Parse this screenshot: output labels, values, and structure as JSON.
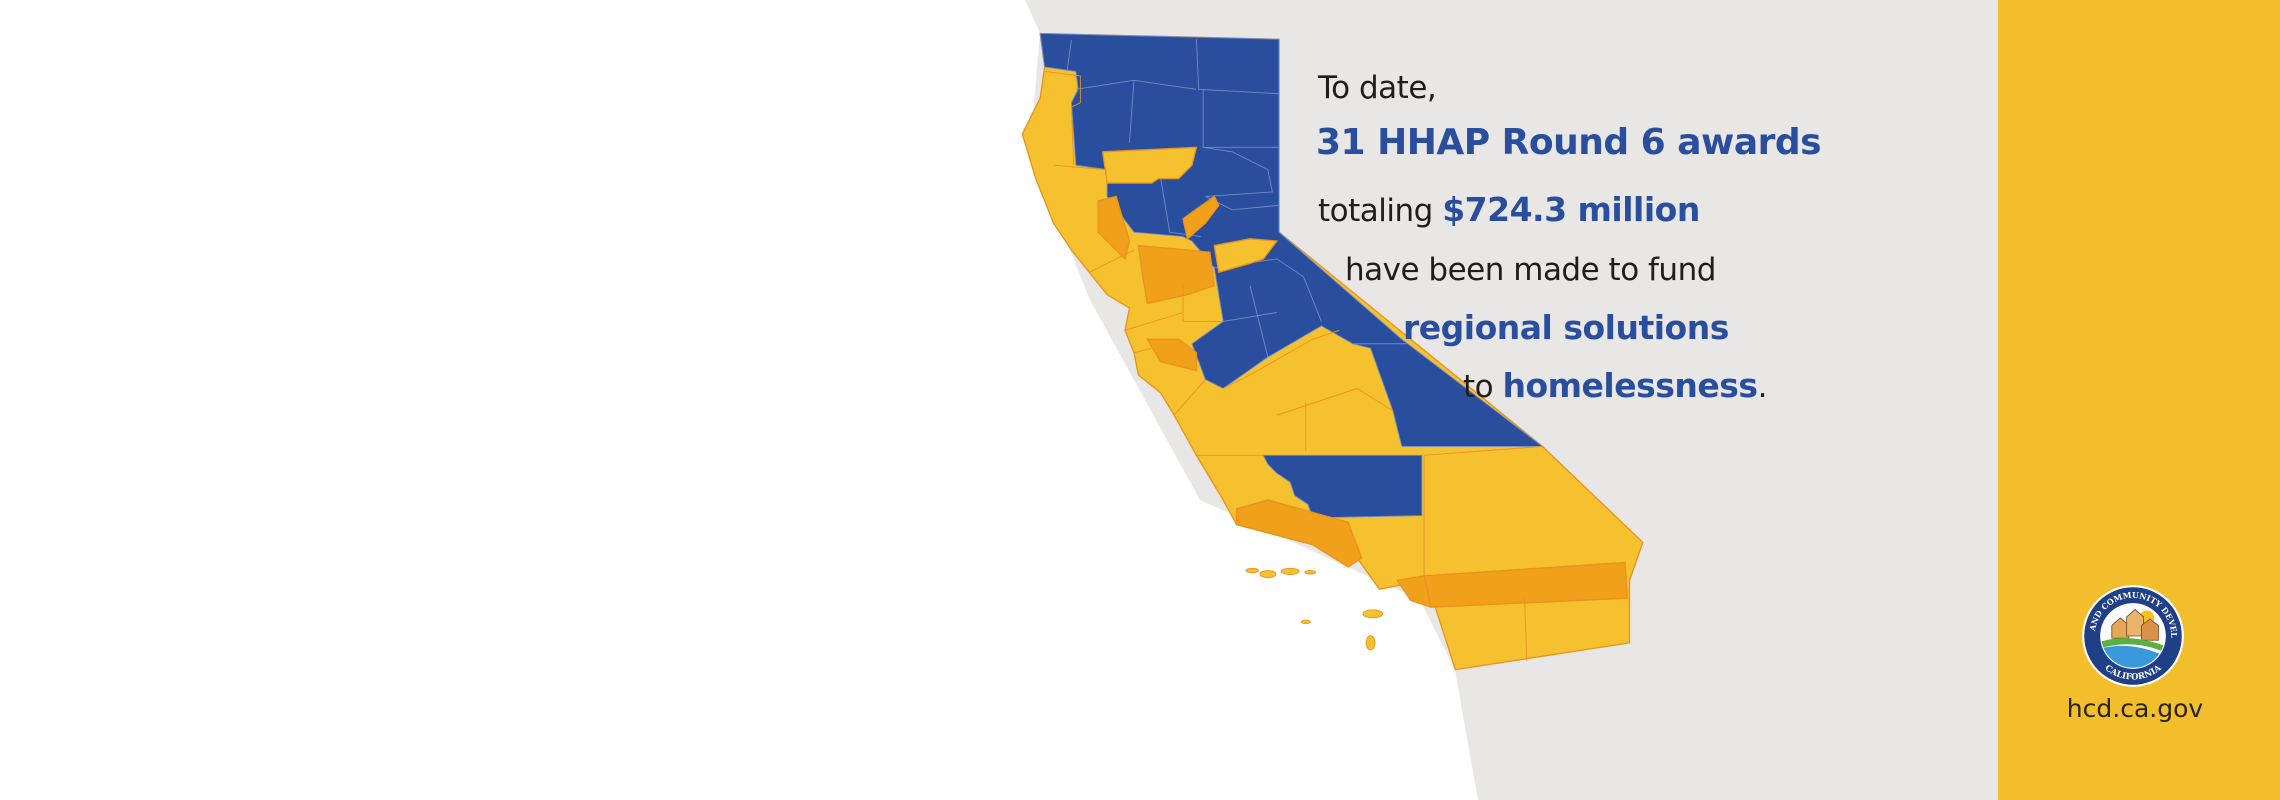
{
  "message": {
    "line1": "To date,",
    "line2": "31 HHAP Round 6 awards",
    "line3_prefix": "totaling ",
    "line3_amount": "$724.3 million",
    "line4": "have been made to fund",
    "line5": "regional solutions",
    "line6_prefix": "to ",
    "line6_emphasis": "homelessness",
    "line6_suffix": "."
  },
  "logo": {
    "ring_text_top": "HOUSING AND COMMUNITY DEVELOPMENT",
    "ring_text_bottom": "CALIFORNIA"
  },
  "website": "hcd.ca.gov",
  "map": {
    "subject": "California counties",
    "legend_colors": {
      "blue": "#2a4e9e",
      "yellow": "#f6c12f",
      "orange": "#f0a01a"
    }
  },
  "colors": {
    "accent_blue": "#2a4e9e",
    "sidebar_yellow": "#f3be2b",
    "background_gray": "#e9e7e5"
  }
}
